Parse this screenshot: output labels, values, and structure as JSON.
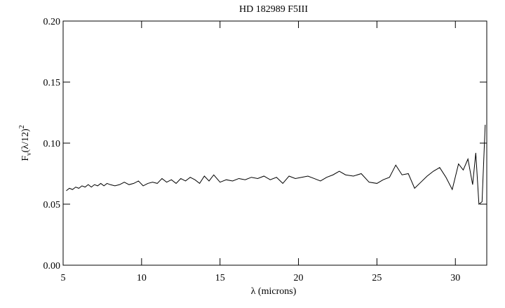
{
  "chart_data": {
    "type": "line",
    "title": "HD 182989 F5III",
    "x_label": "λ (microns)",
    "y_label": [
      "F",
      "ν",
      "(λ/12)",
      "2"
    ],
    "xlim": [
      5,
      32
    ],
    "xticks": [
      5,
      10,
      15,
      20,
      25,
      30
    ],
    "ylim": [
      0,
      0.2
    ],
    "yticks": [
      {
        "value": 0,
        "label": "0.00"
      },
      {
        "value": 0.05,
        "label": "0.05"
      },
      {
        "value": 0.1,
        "label": "0.10"
      },
      {
        "value": 0.15,
        "label": "0.15"
      },
      {
        "value": 0.2,
        "label": "0.20"
      }
    ],
    "color": "#000000",
    "x": [
      5.2,
      5.4,
      5.6,
      5.8,
      6.0,
      6.2,
      6.4,
      6.6,
      6.8,
      7.0,
      7.2,
      7.4,
      7.6,
      7.8,
      8.0,
      8.3,
      8.6,
      8.9,
      9.2,
      9.5,
      9.8,
      10.1,
      10.4,
      10.7,
      11.0,
      11.3,
      11.6,
      11.9,
      12.2,
      12.5,
      12.8,
      13.1,
      13.4,
      13.7,
      14.0,
      14.3,
      14.6,
      15.0,
      15.4,
      15.8,
      16.2,
      16.6,
      17.0,
      17.4,
      17.8,
      18.2,
      18.6,
      19.0,
      19.4,
      19.8,
      20.2,
      20.6,
      21.0,
      21.4,
      21.8,
      22.2,
      22.6,
      23.0,
      23.5,
      24.0,
      24.5,
      25.0,
      25.4,
      25.8,
      26.2,
      26.6,
      27.0,
      27.4,
      27.8,
      28.2,
      28.6,
      29.0,
      29.4,
      29.8,
      30.2,
      30.5,
      30.8,
      31.1,
      31.3,
      31.5,
      31.7,
      31.9
    ],
    "values": [
      0.061,
      0.063,
      0.062,
      0.064,
      0.063,
      0.065,
      0.064,
      0.066,
      0.064,
      0.066,
      0.065,
      0.067,
      0.065,
      0.067,
      0.066,
      0.065,
      0.066,
      0.068,
      0.066,
      0.067,
      0.069,
      0.065,
      0.067,
      0.068,
      0.067,
      0.071,
      0.068,
      0.07,
      0.067,
      0.071,
      0.069,
      0.072,
      0.07,
      0.067,
      0.073,
      0.069,
      0.074,
      0.068,
      0.07,
      0.069,
      0.071,
      0.07,
      0.072,
      0.071,
      0.073,
      0.07,
      0.072,
      0.067,
      0.073,
      0.071,
      0.072,
      0.073,
      0.071,
      0.069,
      0.072,
      0.074,
      0.077,
      0.074,
      0.073,
      0.075,
      0.068,
      0.067,
      0.07,
      0.072,
      0.082,
      0.074,
      0.075,
      0.063,
      0.068,
      0.073,
      0.077,
      0.08,
      0.072,
      0.062,
      0.083,
      0.078,
      0.087,
      0.066,
      0.092,
      0.05,
      0.052,
      0.115
    ]
  }
}
